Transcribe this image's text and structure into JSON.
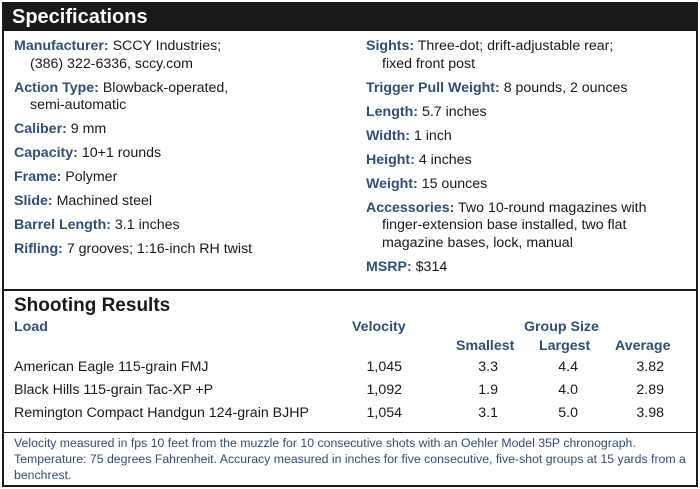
{
  "specifications": {
    "title": "Specifications",
    "left": [
      {
        "label": "Manufacturer:",
        "value": "SCCY Industries;",
        "cont": [
          "(386) 322-6336, sccy.com"
        ]
      },
      {
        "label": "Action Type:",
        "value": "Blowback-operated,",
        "cont": [
          "semi-automatic"
        ]
      },
      {
        "label": "Caliber:",
        "value": "9 mm",
        "cont": []
      },
      {
        "label": "Capacity:",
        "value": "10+1 rounds",
        "cont": []
      },
      {
        "label": "Frame:",
        "value": "Polymer",
        "cont": []
      },
      {
        "label": "Slide:",
        "value": "Machined steel",
        "cont": []
      },
      {
        "label": "Barrel Length:",
        "value": "3.1 inches",
        "cont": []
      },
      {
        "label": "Rifling:",
        "value": "7 grooves; 1:16-inch RH twist",
        "cont": []
      }
    ],
    "right": [
      {
        "label": "Sights:",
        "value": "Three-dot; drift-adjustable rear;",
        "cont": [
          "fixed front post"
        ]
      },
      {
        "label": "Trigger Pull Weight:",
        "value": "8 pounds, 2 ounces",
        "cont": []
      },
      {
        "label": "Length:",
        "value": "5.7 inches",
        "cont": []
      },
      {
        "label": "Width:",
        "value": "1 inch",
        "cont": []
      },
      {
        "label": "Height:",
        "value": "4 inches",
        "cont": []
      },
      {
        "label": "Weight:",
        "value": "15 ounces",
        "cont": []
      },
      {
        "label": "Accessories:",
        "value": "Two 10-round magazines with",
        "cont": [
          "finger-extension base installed, two flat",
          "magazine bases, lock, manual"
        ]
      },
      {
        "label": "MSRP:",
        "value": "$314",
        "cont": []
      }
    ]
  },
  "shooting_results": {
    "title": "Shooting Results",
    "headers": {
      "load": "Load",
      "velocity": "Velocity",
      "group_size": "Group Size",
      "smallest": "Smallest",
      "largest": "Largest",
      "average": "Average"
    },
    "rows": [
      {
        "load": "American Eagle 115-grain FMJ",
        "velocity": "1,045",
        "smallest": "3.3",
        "largest": "4.4",
        "average": "3.82"
      },
      {
        "load": "Black Hills 115-grain Tac-XP +P",
        "velocity": "1,092",
        "smallest": "1.9",
        "largest": "4.0",
        "average": "2.89"
      },
      {
        "load": "Remington Compact Handgun 124-grain BJHP",
        "velocity": "1,054",
        "smallest": "3.1",
        "largest": "5.0",
        "average": "3.98"
      }
    ],
    "footnote": "Velocity measured in fps 10 feet from the muzzle for 10 consecutive shots with an Oehler Model 35P chronograph. Temperature: 75 degrees Fahrenheit. Accuracy measured in inches for five consecutive, five-shot groups at 15 yards from a benchrest."
  },
  "colors": {
    "label_blue": "#2e4f7a",
    "header_black": "#1a1a1a"
  }
}
